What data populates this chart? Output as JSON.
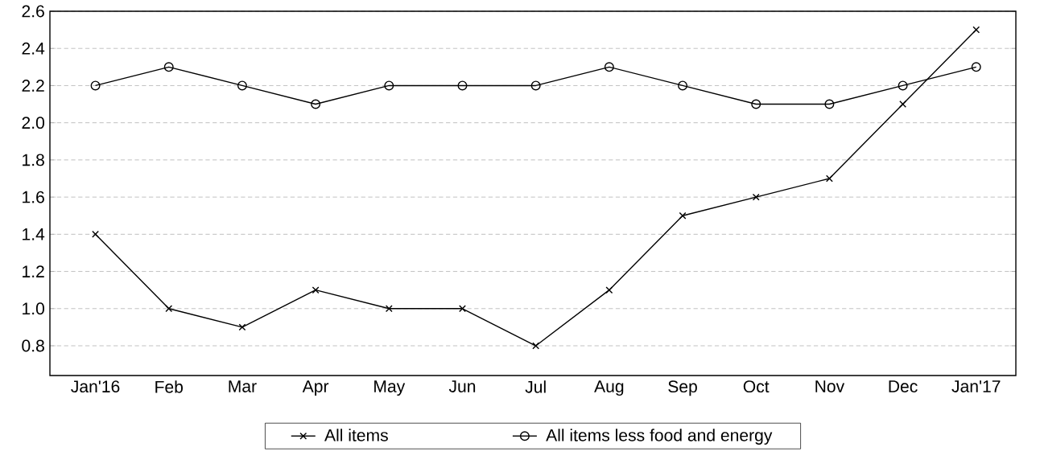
{
  "chart_data": {
    "type": "line",
    "categories": [
      "Jan'16",
      "Feb",
      "Mar",
      "Apr",
      "May",
      "Jun",
      "Jul",
      "Aug",
      "Sep",
      "Oct",
      "Nov",
      "Dec",
      "Jan'17"
    ],
    "series": [
      {
        "name": "All items",
        "color": "#000000",
        "marker": "cross",
        "values": [
          1.4,
          1.0,
          0.9,
          1.1,
          1.0,
          1.0,
          0.8,
          1.1,
          1.5,
          1.6,
          1.7,
          2.1,
          2.5
        ]
      },
      {
        "name": "All items less food and energy",
        "color": "#000000",
        "marker": "circle",
        "values": [
          2.2,
          2.3,
          2.2,
          2.1,
          2.2,
          2.2,
          2.2,
          2.3,
          2.2,
          2.1,
          2.1,
          2.2,
          2.3
        ]
      }
    ],
    "ylim": [
      0.64,
      2.6
    ],
    "yticks": [
      {
        "value": 0.8,
        "label": "0.8"
      },
      {
        "value": 1.0,
        "label": "1.0"
      },
      {
        "value": 1.2,
        "label": "1.2"
      },
      {
        "value": 1.4,
        "label": "1.4"
      },
      {
        "value": 1.6,
        "label": "1.6"
      },
      {
        "value": 1.8,
        "label": "1.8"
      },
      {
        "value": 2.0,
        "label": "2.0"
      },
      {
        "value": 2.2,
        "label": "2.2"
      },
      {
        "value": 2.4,
        "label": "2.4"
      },
      {
        "value": 2.6,
        "label": "2.6"
      }
    ],
    "grid": "y",
    "legend": "bottom",
    "line_style": "solid"
  }
}
